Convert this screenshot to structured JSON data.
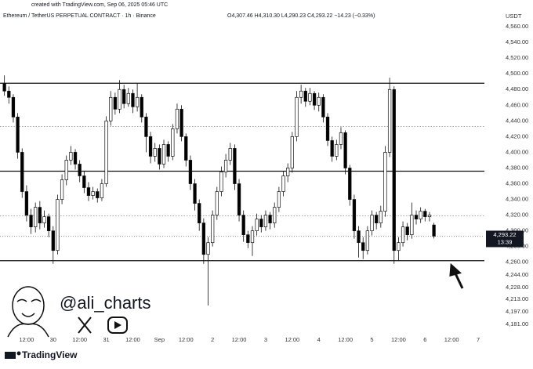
{
  "credit": "created with TradingView.com, Sep 06, 2025 05:46 UTC",
  "chart_data": {
    "type": "candlestick",
    "title": "Ethereum / TetherUS PERPETUAL CONTRACT · 1h · Binance",
    "ohlc_text": "O4,307.46 H4,310.30 L4,290.23 C4,293.22 −14.23 (−0.33%)",
    "y_unit": "USDT",
    "up_color": "#ffffff",
    "down_color": "#000000",
    "x": [
      -5,
      -4,
      -3,
      -2,
      -1,
      0,
      1,
      2,
      3,
      4,
      5,
      6,
      7,
      8,
      9,
      10,
      11,
      12,
      13,
      14,
      15,
      16,
      17,
      18,
      19,
      20,
      21,
      22,
      23,
      24,
      25,
      26,
      27,
      28,
      29,
      30,
      31,
      32,
      33,
      34,
      35,
      36,
      37,
      38,
      39,
      40,
      41,
      42,
      43,
      44,
      45,
      46,
      47,
      48,
      49,
      50,
      51,
      52,
      53,
      54,
      55,
      56,
      57,
      58,
      59,
      60,
      61,
      62,
      63,
      64,
      65,
      66,
      67,
      68,
      69,
      70,
      71,
      72,
      73,
      74,
      75,
      76,
      77,
      78,
      79,
      80,
      81,
      82,
      83,
      84,
      85,
      86,
      87,
      88,
      89,
      90,
      91,
      92
    ],
    "open": [
      4488,
      4478,
      4470,
      4445,
      4400,
      4350,
      4320,
      4305,
      4330,
      4310,
      4318,
      4300,
      4275,
      4340,
      4365,
      4390,
      4400,
      4385,
      4370,
      4355,
      4345,
      4350,
      4342,
      4360,
      4440,
      4470,
      4455,
      4480,
      4462,
      4475,
      4458,
      4470,
      4445,
      4420,
      4395,
      4405,
      4385,
      4410,
      4395,
      4430,
      4455,
      4420,
      4390,
      4360,
      4335,
      4310,
      4270,
      4285,
      4320,
      4350,
      4375,
      4390,
      4405,
      4360,
      4320,
      4295,
      4285,
      4300,
      4315,
      4305,
      4320,
      4310,
      4330,
      4350,
      4370,
      4380,
      4420,
      4470,
      4478,
      4465,
      4475,
      4460,
      4470,
      4445,
      4415,
      4395,
      4410,
      4425,
      4380,
      4340,
      4300,
      4285,
      4275,
      4300,
      4320,
      4310,
      4325,
      4400,
      4480,
      4275,
      4285,
      4305,
      4295,
      4320,
      4315,
      4325,
      4318,
      4307.46
    ],
    "high": [
      4498,
      4484,
      4474,
      4450,
      4405,
      4358,
      4328,
      4336,
      4338,
      4326,
      4322,
      4306,
      4346,
      4372,
      4396,
      4408,
      4404,
      4390,
      4376,
      4362,
      4356,
      4354,
      4366,
      4446,
      4478,
      4476,
      4492,
      4486,
      4482,
      4480,
      4488,
      4474,
      4450,
      4426,
      4412,
      4410,
      4416,
      4414,
      4436,
      4462,
      4460,
      4424,
      4396,
      4366,
      4340,
      4316,
      4292,
      4326,
      4356,
      4382,
      4398,
      4412,
      4410,
      4366,
      4326,
      4300,
      4306,
      4322,
      4320,
      4326,
      4324,
      4336,
      4356,
      4376,
      4386,
      4426,
      4478,
      4486,
      4482,
      4482,
      4478,
      4476,
      4474,
      4450,
      4420,
      4416,
      4432,
      4428,
      4384,
      4346,
      4306,
      4292,
      4306,
      4326,
      4324,
      4332,
      4408,
      4495,
      4484,
      4292,
      4312,
      4310,
      4336,
      4326,
      4330,
      4328,
      4324,
      4310.3
    ],
    "low": [
      4472,
      4462,
      4438,
      4392,
      4342,
      4312,
      4296,
      4298,
      4302,
      4304,
      4292,
      4258,
      4270,
      4334,
      4358,
      4384,
      4378,
      4362,
      4348,
      4338,
      4340,
      4336,
      4338,
      4356,
      4434,
      4448,
      4450,
      4456,
      4458,
      4450,
      4452,
      4438,
      4400,
      4386,
      4388,
      4378,
      4380,
      4388,
      4390,
      4424,
      4414,
      4382,
      4352,
      4326,
      4300,
      4258,
      4205,
      4280,
      4314,
      4344,
      4368,
      4384,
      4352,
      4312,
      4286,
      4278,
      4268,
      4294,
      4298,
      4300,
      4302,
      4304,
      4324,
      4344,
      4362,
      4374,
      4414,
      4462,
      4458,
      4460,
      4454,
      4452,
      4438,
      4408,
      4388,
      4390,
      4404,
      4372,
      4332,
      4290,
      4266,
      4264,
      4270,
      4294,
      4302,
      4304,
      4318,
      4394,
      4258,
      4262,
      4280,
      4288,
      4290,
      4308,
      4310,
      4312,
      4312,
      4290.23
    ],
    "close": [
      4478,
      4470,
      4445,
      4400,
      4350,
      4320,
      4305,
      4330,
      4310,
      4318,
      4300,
      4275,
      4340,
      4365,
      4390,
      4400,
      4385,
      4370,
      4355,
      4345,
      4350,
      4342,
      4360,
      4440,
      4470,
      4455,
      4480,
      4462,
      4475,
      4458,
      4470,
      4445,
      4420,
      4395,
      4405,
      4385,
      4410,
      4395,
      4430,
      4455,
      4420,
      4390,
      4360,
      4335,
      4310,
      4270,
      4285,
      4320,
      4350,
      4375,
      4390,
      4405,
      4360,
      4320,
      4295,
      4285,
      4300,
      4315,
      4305,
      4320,
      4310,
      4330,
      4350,
      4370,
      4380,
      4420,
      4470,
      4478,
      4465,
      4475,
      4460,
      4470,
      4445,
      4415,
      4395,
      4410,
      4425,
      4380,
      4340,
      4300,
      4285,
      4275,
      4300,
      4320,
      4310,
      4325,
      4400,
      4480,
      4275,
      4285,
      4305,
      4295,
      4320,
      4315,
      4325,
      4318,
      4320,
      4293.22
    ],
    "xlim": [
      -6,
      103.4
    ],
    "xticks": [
      {
        "value": 0,
        "label": "12:00"
      },
      {
        "value": 6,
        "label": "30"
      },
      {
        "value": 12,
        "label": "12:00"
      },
      {
        "value": 18,
        "label": "31"
      },
      {
        "value": 24,
        "label": "12:00"
      },
      {
        "value": 30,
        "label": "Sep"
      },
      {
        "value": 36,
        "label": "12:00"
      },
      {
        "value": 42,
        "label": "2"
      },
      {
        "value": 48,
        "label": "12:00"
      },
      {
        "value": 54,
        "label": "3"
      },
      {
        "value": 60,
        "label": "12:00"
      },
      {
        "value": 66,
        "label": "4"
      },
      {
        "value": 72,
        "label": "12:00"
      },
      {
        "value": 78,
        "label": "5"
      },
      {
        "value": 84,
        "label": "12:00"
      },
      {
        "value": 90,
        "label": "6"
      },
      {
        "value": 96,
        "label": "12:00"
      },
      {
        "value": 102,
        "label": "7"
      }
    ],
    "ylim": [
      4148,
      4594
    ],
    "yticks": [
      {
        "value": 4560,
        "label": "4,560.00"
      },
      {
        "value": 4540,
        "label": "4,540.00"
      },
      {
        "value": 4520,
        "label": "4,520.00"
      },
      {
        "value": 4500,
        "label": "4,500.00"
      },
      {
        "value": 4480,
        "label": "4,480.00"
      },
      {
        "value": 4460,
        "label": "4,460.00"
      },
      {
        "value": 4440,
        "label": "4,440.00"
      },
      {
        "value": 4420,
        "label": "4,420.00"
      },
      {
        "value": 4400,
        "label": "4,400.00"
      },
      {
        "value": 4380,
        "label": "4,380.00"
      },
      {
        "value": 4360,
        "label": "4,360.00"
      },
      {
        "value": 4340,
        "label": "4,340.00"
      },
      {
        "value": 4320,
        "label": "4,320.00"
      },
      {
        "value": 4300,
        "label": "4,300.00"
      },
      {
        "value": 4280,
        "label": "4,280.00"
      },
      {
        "value": 4260,
        "label": "4,260.00"
      },
      {
        "value": 4244,
        "label": "4,244.00"
      },
      {
        "value": 4228,
        "label": "4,228.00"
      },
      {
        "value": 4213,
        "label": "4,213.00"
      },
      {
        "value": 4197,
        "label": "4,197.00"
      },
      {
        "value": 4181,
        "label": "4,181.00"
      }
    ],
    "levels": [
      {
        "value": 4488,
        "style": "solid"
      },
      {
        "value": 4433,
        "style": "dotted"
      },
      {
        "value": 4376,
        "style": "solid"
      },
      {
        "value": 4319,
        "style": "dotted"
      },
      {
        "value": 4262,
        "style": "solid"
      }
    ],
    "last_price": {
      "value": 4293.22,
      "label": "4,293.22",
      "countdown": "13:39"
    }
  },
  "watermark": {
    "handle": "@ali_charts",
    "brand": "TradingView"
  }
}
